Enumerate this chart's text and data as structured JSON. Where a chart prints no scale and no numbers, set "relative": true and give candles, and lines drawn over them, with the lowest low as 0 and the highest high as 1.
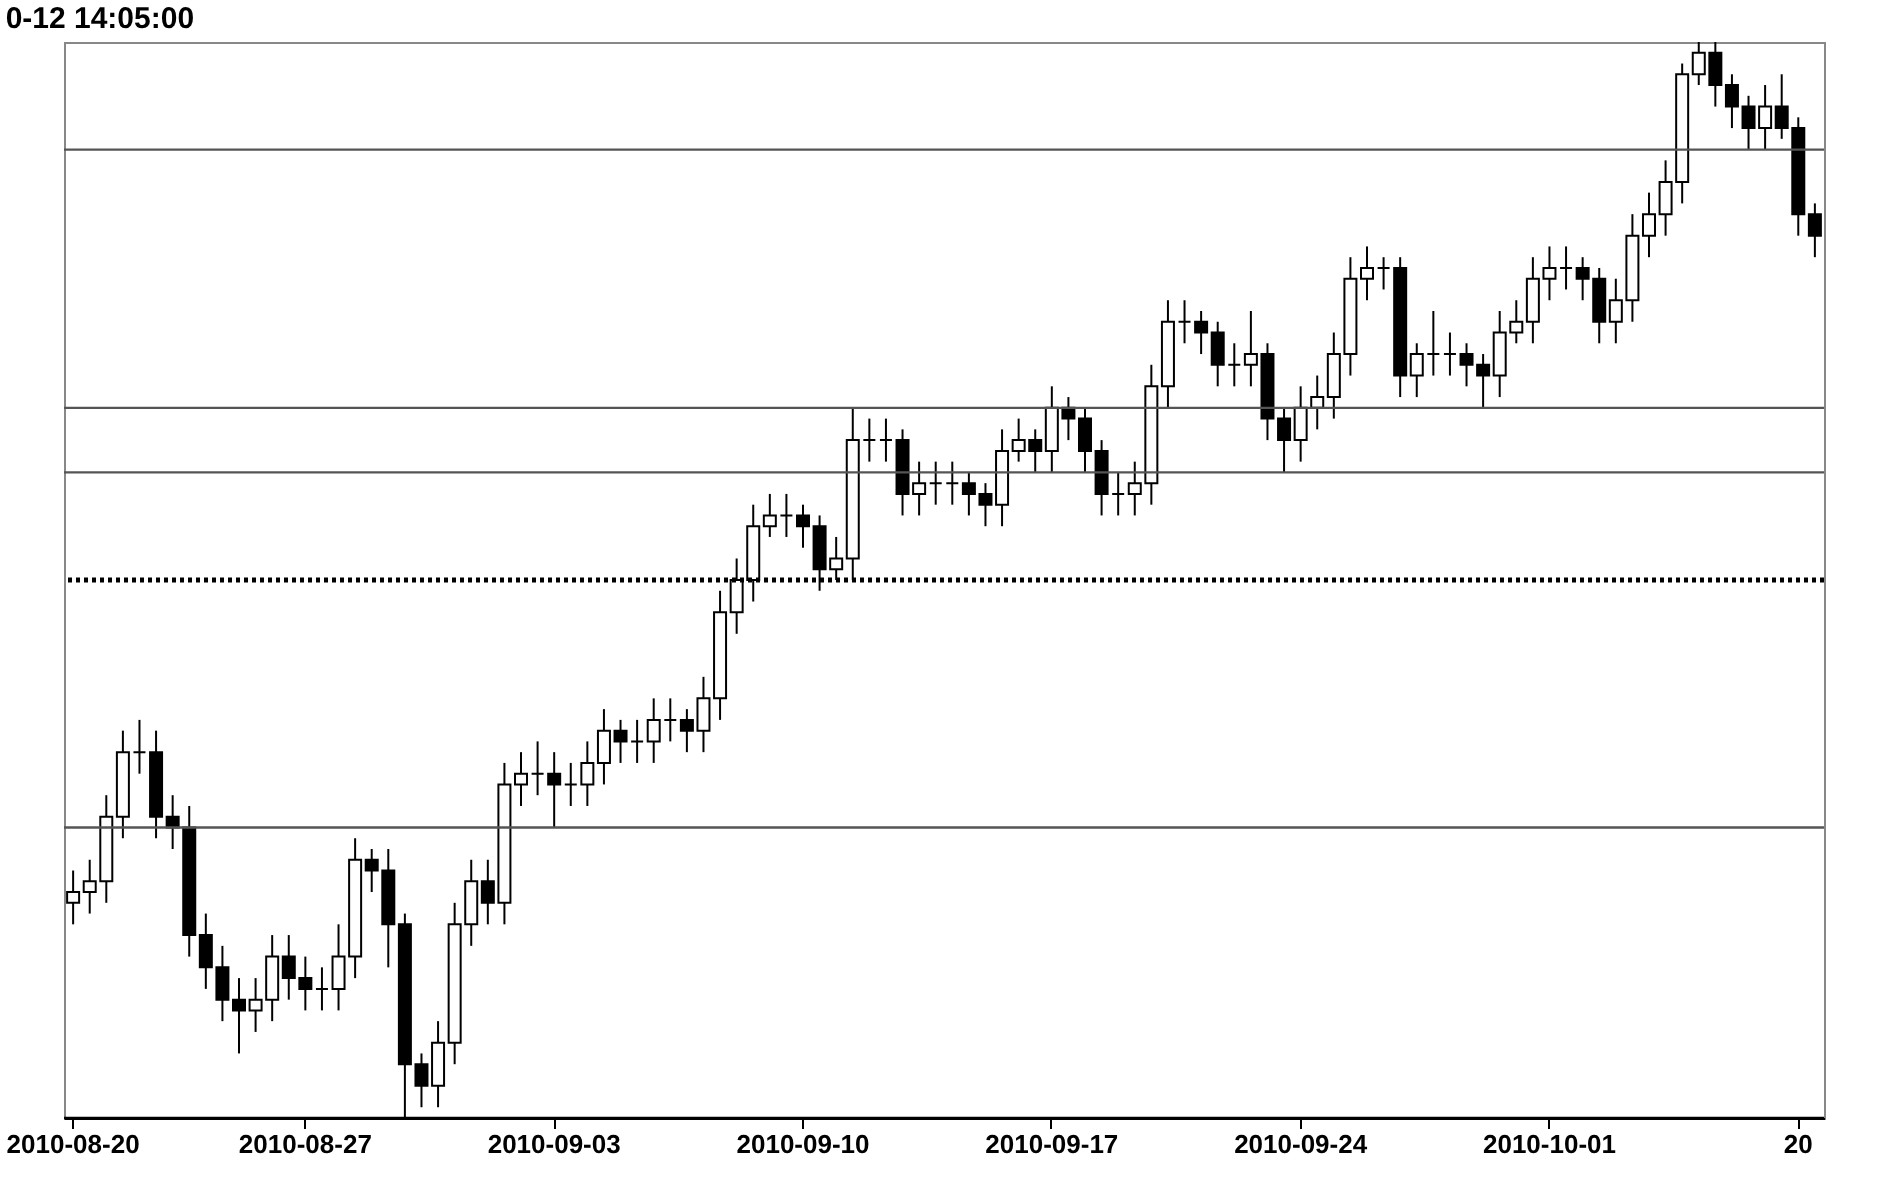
{
  "chart_data": {
    "type": "candlestick",
    "title": "0-12 14:05:00",
    "relative": true,
    "categories": [
      "2010-08-20",
      null,
      null,
      null,
      null,
      null,
      null,
      null,
      null,
      null,
      null,
      null,
      null,
      null,
      "2010-08-27",
      null,
      null,
      null,
      null,
      null,
      null,
      null,
      null,
      null,
      null,
      null,
      null,
      null,
      null,
      "2010-09-03",
      null,
      null,
      null,
      null,
      null,
      null,
      null,
      null,
      null,
      null,
      null,
      null,
      null,
      null,
      "2010-09-10",
      null,
      null,
      null,
      null,
      null,
      null,
      null,
      null,
      null,
      null,
      null,
      null,
      null,
      null,
      "2010-09-17",
      null,
      null,
      null,
      null,
      null,
      null,
      null,
      null,
      null,
      null,
      null,
      null,
      null,
      null,
      "2010-09-24",
      null,
      null,
      null,
      null,
      null,
      null,
      null,
      null,
      null,
      null,
      null,
      null,
      null,
      null,
      "2010-10-01",
      null,
      null,
      null,
      null,
      null,
      null,
      null,
      null,
      null,
      null,
      null,
      null,
      null,
      null,
      "20",
      null
    ],
    "ohlc": [
      [
        0.2,
        0.23,
        0.18,
        0.21
      ],
      [
        0.21,
        0.24,
        0.19,
        0.22
      ],
      [
        0.22,
        0.3,
        0.2,
        0.28
      ],
      [
        0.28,
        0.36,
        0.26,
        0.34
      ],
      [
        0.34,
        0.37,
        0.32,
        0.34
      ],
      [
        0.34,
        0.36,
        0.26,
        0.28
      ],
      [
        0.28,
        0.3,
        0.25,
        0.27
      ],
      [
        0.27,
        0.29,
        0.15,
        0.17
      ],
      [
        0.17,
        0.19,
        0.12,
        0.14
      ],
      [
        0.14,
        0.16,
        0.09,
        0.11
      ],
      [
        0.11,
        0.13,
        0.06,
        0.1
      ],
      [
        0.1,
        0.13,
        0.08,
        0.11
      ],
      [
        0.11,
        0.17,
        0.09,
        0.15
      ],
      [
        0.15,
        0.17,
        0.11,
        0.13
      ],
      [
        0.13,
        0.15,
        0.1,
        0.12
      ],
      [
        0.12,
        0.14,
        0.1,
        0.12
      ],
      [
        0.12,
        0.18,
        0.1,
        0.15
      ],
      [
        0.15,
        0.26,
        0.13,
        0.24
      ],
      [
        0.24,
        0.25,
        0.21,
        0.23
      ],
      [
        0.23,
        0.25,
        0.14,
        0.18
      ],
      [
        0.18,
        0.19,
        0.0,
        0.05
      ],
      [
        0.05,
        0.06,
        0.01,
        0.03
      ],
      [
        0.03,
        0.09,
        0.01,
        0.07
      ],
      [
        0.07,
        0.2,
        0.05,
        0.18
      ],
      [
        0.18,
        0.24,
        0.16,
        0.22
      ],
      [
        0.22,
        0.24,
        0.18,
        0.2
      ],
      [
        0.2,
        0.33,
        0.18,
        0.31
      ],
      [
        0.31,
        0.34,
        0.29,
        0.32
      ],
      [
        0.32,
        0.35,
        0.3,
        0.32
      ],
      [
        0.32,
        0.34,
        0.27,
        0.31
      ],
      [
        0.31,
        0.33,
        0.29,
        0.31
      ],
      [
        0.31,
        0.35,
        0.29,
        0.33
      ],
      [
        0.33,
        0.38,
        0.31,
        0.36
      ],
      [
        0.36,
        0.37,
        0.33,
        0.35
      ],
      [
        0.35,
        0.37,
        0.33,
        0.35
      ],
      [
        0.35,
        0.39,
        0.33,
        0.37
      ],
      [
        0.37,
        0.39,
        0.35,
        0.37
      ],
      [
        0.37,
        0.38,
        0.34,
        0.36
      ],
      [
        0.36,
        0.41,
        0.34,
        0.39
      ],
      [
        0.39,
        0.49,
        0.37,
        0.47
      ],
      [
        0.47,
        0.52,
        0.45,
        0.5
      ],
      [
        0.5,
        0.57,
        0.48,
        0.55
      ],
      [
        0.55,
        0.58,
        0.54,
        0.56
      ],
      [
        0.56,
        0.58,
        0.54,
        0.56
      ],
      [
        0.56,
        0.57,
        0.53,
        0.55
      ],
      [
        0.55,
        0.56,
        0.49,
        0.51
      ],
      [
        0.51,
        0.54,
        0.5,
        0.52
      ],
      [
        0.52,
        0.66,
        0.5,
        0.63
      ],
      [
        0.63,
        0.65,
        0.61,
        0.63
      ],
      [
        0.63,
        0.65,
        0.61,
        0.63
      ],
      [
        0.63,
        0.64,
        0.56,
        0.58
      ],
      [
        0.58,
        0.61,
        0.56,
        0.59
      ],
      [
        0.59,
        0.61,
        0.57,
        0.59
      ],
      [
        0.59,
        0.61,
        0.57,
        0.59
      ],
      [
        0.59,
        0.6,
        0.56,
        0.58
      ],
      [
        0.58,
        0.59,
        0.55,
        0.57
      ],
      [
        0.57,
        0.64,
        0.55,
        0.62
      ],
      [
        0.62,
        0.65,
        0.61,
        0.63
      ],
      [
        0.63,
        0.64,
        0.6,
        0.62
      ],
      [
        0.62,
        0.68,
        0.6,
        0.66
      ],
      [
        0.66,
        0.67,
        0.63,
        0.65
      ],
      [
        0.65,
        0.66,
        0.6,
        0.62
      ],
      [
        0.62,
        0.63,
        0.56,
        0.58
      ],
      [
        0.58,
        0.6,
        0.56,
        0.58
      ],
      [
        0.58,
        0.61,
        0.56,
        0.59
      ],
      [
        0.59,
        0.7,
        0.57,
        0.68
      ],
      [
        0.68,
        0.76,
        0.66,
        0.74
      ],
      [
        0.74,
        0.76,
        0.72,
        0.74
      ],
      [
        0.74,
        0.75,
        0.71,
        0.73
      ],
      [
        0.73,
        0.74,
        0.68,
        0.7
      ],
      [
        0.7,
        0.72,
        0.68,
        0.7
      ],
      [
        0.7,
        0.75,
        0.68,
        0.71
      ],
      [
        0.71,
        0.72,
        0.63,
        0.65
      ],
      [
        0.65,
        0.66,
        0.6,
        0.63
      ],
      [
        0.63,
        0.68,
        0.61,
        0.66
      ],
      [
        0.66,
        0.69,
        0.64,
        0.67
      ],
      [
        0.67,
        0.73,
        0.65,
        0.71
      ],
      [
        0.71,
        0.8,
        0.69,
        0.78
      ],
      [
        0.78,
        0.81,
        0.76,
        0.79
      ],
      [
        0.79,
        0.8,
        0.77,
        0.79
      ],
      [
        0.79,
        0.8,
        0.67,
        0.69
      ],
      [
        0.69,
        0.72,
        0.67,
        0.71
      ],
      [
        0.71,
        0.75,
        0.69,
        0.71
      ],
      [
        0.71,
        0.73,
        0.69,
        0.71
      ],
      [
        0.71,
        0.72,
        0.68,
        0.7
      ],
      [
        0.7,
        0.71,
        0.66,
        0.69
      ],
      [
        0.69,
        0.75,
        0.67,
        0.73
      ],
      [
        0.73,
        0.76,
        0.72,
        0.74
      ],
      [
        0.74,
        0.8,
        0.72,
        0.78
      ],
      [
        0.78,
        0.81,
        0.76,
        0.79
      ],
      [
        0.79,
        0.81,
        0.77,
        0.79
      ],
      [
        0.79,
        0.8,
        0.76,
        0.78
      ],
      [
        0.78,
        0.79,
        0.72,
        0.74
      ],
      [
        0.74,
        0.78,
        0.72,
        0.76
      ],
      [
        0.76,
        0.84,
        0.74,
        0.82
      ],
      [
        0.82,
        0.86,
        0.8,
        0.84
      ],
      [
        0.84,
        0.89,
        0.82,
        0.87
      ],
      [
        0.87,
        0.98,
        0.85,
        0.97
      ],
      [
        0.97,
        1.0,
        0.96,
        0.99
      ],
      [
        0.99,
        1.0,
        0.94,
        0.96
      ],
      [
        0.96,
        0.97,
        0.92,
        0.94
      ],
      [
        0.94,
        0.95,
        0.9,
        0.92
      ],
      [
        0.92,
        0.96,
        0.9,
        0.94
      ],
      [
        0.94,
        0.97,
        0.91,
        0.92
      ],
      [
        0.92,
        0.93,
        0.82,
        0.84
      ],
      [
        0.84,
        0.85,
        0.8,
        0.82
      ]
    ],
    "ref_lines": [
      {
        "axis": "y",
        "value": 0.0,
        "color": "#000000"
      },
      {
        "axis": "y",
        "value": 0.27,
        "color": "#555555"
      },
      {
        "axis": "y",
        "value": 0.5,
        "color": "#000000",
        "line_style": "dotted"
      },
      {
        "axis": "y",
        "value": 0.6,
        "color": "#555555"
      },
      {
        "axis": "y",
        "value": 0.66,
        "color": "#555555"
      },
      {
        "axis": "y",
        "value": 0.9,
        "color": "#555555"
      }
    ]
  }
}
